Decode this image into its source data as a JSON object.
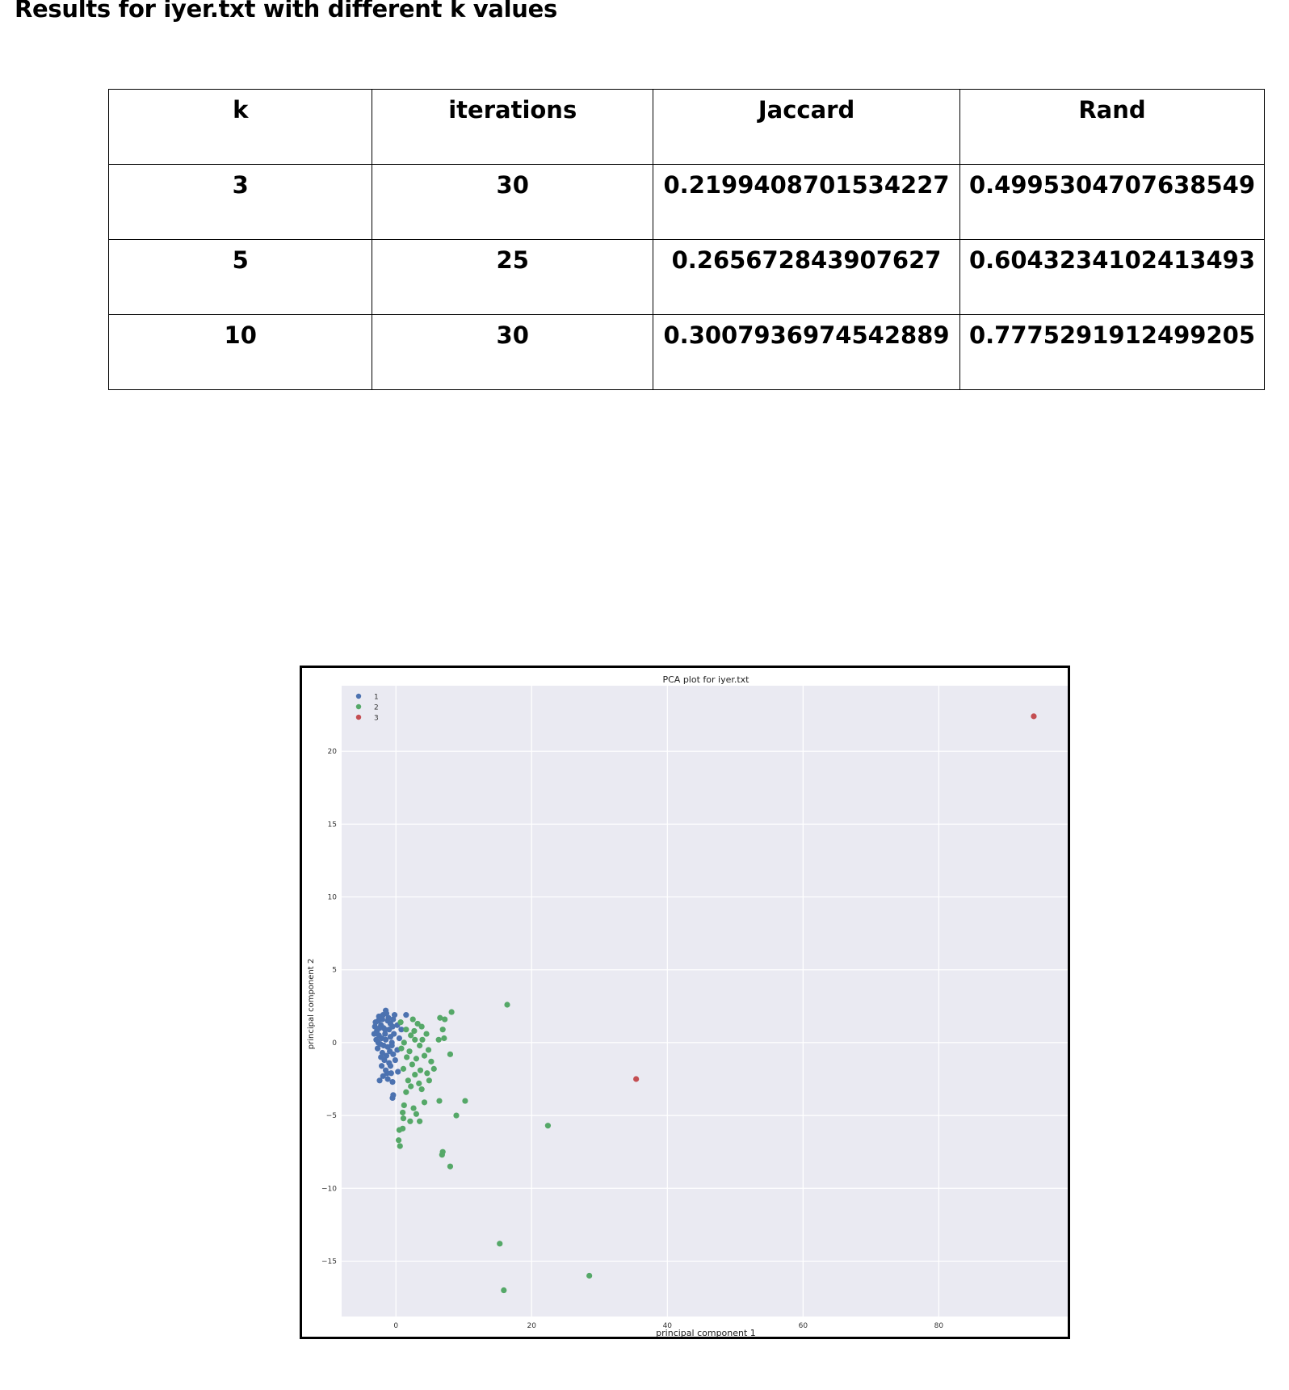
{
  "heading": "Results for iyer.txt with different k values",
  "table": {
    "headers": [
      "k",
      "iterations",
      "Jaccard",
      "Rand"
    ],
    "rows": [
      [
        "3",
        "30",
        "0.2199408701534227",
        "0.4995304707638549"
      ],
      [
        "5",
        "25",
        "0.265672843907627",
        "0.6043234102413493"
      ],
      [
        "10",
        "30",
        "0.3007936974542889",
        "0.7775291912499205"
      ]
    ]
  },
  "chart_data": {
    "type": "scatter",
    "title": "PCA plot for iyer.txt",
    "xlabel": "principal component 1",
    "ylabel": "principal component 2",
    "xlim": [
      -8,
      99
    ],
    "ylim": [
      -18.8,
      24.5
    ],
    "xticks": [
      0,
      20,
      40,
      60,
      80
    ],
    "yticks": [
      20,
      15,
      10,
      5,
      0,
      -5,
      -10,
      -15
    ],
    "grid": true,
    "legend_position": "top-left",
    "background": "#eaeaf2",
    "series": [
      {
        "name": "1",
        "color": "#4c72b0",
        "points": [
          [
            -2.5,
            1.8
          ],
          [
            -2.0,
            1.6
          ],
          [
            -1.5,
            2.2
          ],
          [
            -3.0,
            1.4
          ],
          [
            -2.2,
            1.2
          ],
          [
            -1.8,
            1.0
          ],
          [
            -2.8,
            0.8
          ],
          [
            -1.2,
            1.5
          ],
          [
            -0.8,
            1.3
          ],
          [
            -2.5,
            0.5
          ],
          [
            -1.6,
            0.6
          ],
          [
            -2.9,
            0.2
          ],
          [
            -1.0,
            0.9
          ],
          [
            -0.5,
            1.1
          ],
          [
            -2.3,
            -0.1
          ],
          [
            -1.5,
            0.2
          ],
          [
            -0.8,
            0.4
          ],
          [
            -2.7,
            -0.4
          ],
          [
            -1.2,
            -0.3
          ],
          [
            -0.3,
            0.6
          ],
          [
            -2.0,
            -0.7
          ],
          [
            -1.4,
            -0.9
          ],
          [
            -0.6,
            -0.2
          ],
          [
            -2.4,
            1.0
          ],
          [
            -1.9,
            1.9
          ],
          [
            -1.1,
            1.7
          ],
          [
            -2.6,
            1.5
          ],
          [
            -0.4,
            1.6
          ],
          [
            0.2,
            1.2
          ],
          [
            -1.7,
            -1.2
          ],
          [
            -1.0,
            -1.4
          ],
          [
            -0.4,
            -0.8
          ],
          [
            -2.1,
            -1.6
          ],
          [
            -1.5,
            -1.9
          ],
          [
            -0.7,
            -2.1
          ],
          [
            -1.9,
            -2.3
          ],
          [
            -1.2,
            -2.5
          ],
          [
            -0.5,
            -2.7
          ],
          [
            -0.4,
            -3.6
          ],
          [
            -0.5,
            -3.8
          ],
          [
            0.2,
            -0.5
          ],
          [
            0.5,
            0.3
          ],
          [
            0.8,
            0.9
          ],
          [
            1.5,
            1.9
          ],
          [
            -3.1,
            1.1
          ],
          [
            -3.2,
            0.6
          ],
          [
            -2.6,
            0.0
          ],
          [
            -0.9,
            -0.6
          ],
          [
            -1.3,
            -2.1
          ],
          [
            -0.8,
            -1.6
          ],
          [
            -2.2,
            -1.0
          ],
          [
            -0.1,
            -1.2
          ],
          [
            0.3,
            -2.0
          ],
          [
            -1.6,
            0.9
          ],
          [
            -2.1,
            0.3
          ],
          [
            -0.2,
            1.9
          ],
          [
            -1.4,
            2.0
          ],
          [
            -2.4,
            -2.6
          ],
          [
            -0.6,
            0.0
          ],
          [
            -1.8,
            -0.2
          ]
        ]
      },
      {
        "name": "2",
        "color": "#55a868",
        "points": [
          [
            16.4,
            2.6
          ],
          [
            8.2,
            2.1
          ],
          [
            6.5,
            1.7
          ],
          [
            7.2,
            1.6
          ],
          [
            6.9,
            0.9
          ],
          [
            6.3,
            0.2
          ],
          [
            7.1,
            0.3
          ],
          [
            8.0,
            -0.8
          ],
          [
            2.5,
            1.6
          ],
          [
            3.2,
            1.3
          ],
          [
            1.5,
            0.9
          ],
          [
            2.2,
            0.5
          ],
          [
            3.8,
            1.1
          ],
          [
            4.5,
            0.6
          ],
          [
            2.8,
            0.2
          ],
          [
            1.2,
            0.0
          ],
          [
            3.5,
            -0.2
          ],
          [
            4.8,
            -0.5
          ],
          [
            2.0,
            -0.6
          ],
          [
            1.6,
            -1.0
          ],
          [
            3.0,
            -1.1
          ],
          [
            4.2,
            -0.9
          ],
          [
            5.2,
            -1.3
          ],
          [
            2.4,
            -1.5
          ],
          [
            1.1,
            -1.8
          ],
          [
            3.6,
            -1.9
          ],
          [
            4.6,
            -2.1
          ],
          [
            2.8,
            -2.2
          ],
          [
            1.8,
            -2.6
          ],
          [
            3.4,
            -2.8
          ],
          [
            4.9,
            -2.6
          ],
          [
            2.2,
            -3.0
          ],
          [
            3.8,
            -3.2
          ],
          [
            1.5,
            -3.4
          ],
          [
            10.2,
            -4.0
          ],
          [
            6.4,
            -4.0
          ],
          [
            4.2,
            -4.1
          ],
          [
            1.2,
            -4.3
          ],
          [
            2.6,
            -4.5
          ],
          [
            1.0,
            -4.8
          ],
          [
            3.0,
            -4.9
          ],
          [
            8.9,
            -5.0
          ],
          [
            1.1,
            -5.2
          ],
          [
            2.1,
            -5.4
          ],
          [
            3.5,
            -5.4
          ],
          [
            1.0,
            -5.9
          ],
          [
            0.5,
            -6.0
          ],
          [
            22.4,
            -5.7
          ],
          [
            0.4,
            -6.7
          ],
          [
            0.6,
            -7.1
          ],
          [
            6.9,
            -7.5
          ],
          [
            6.8,
            -7.7
          ],
          [
            8.0,
            -8.5
          ],
          [
            15.3,
            -13.8
          ],
          [
            15.9,
            -17.0
          ],
          [
            28.5,
            -16.0
          ],
          [
            2.7,
            0.8
          ],
          [
            3.9,
            0.2
          ],
          [
            0.8,
            -0.4
          ],
          [
            5.6,
            -1.8
          ],
          [
            0.7,
            1.4
          ]
        ]
      },
      {
        "name": "3",
        "color": "#c44e52",
        "points": [
          [
            94.0,
            22.4
          ],
          [
            35.4,
            -2.5
          ]
        ]
      }
    ]
  }
}
